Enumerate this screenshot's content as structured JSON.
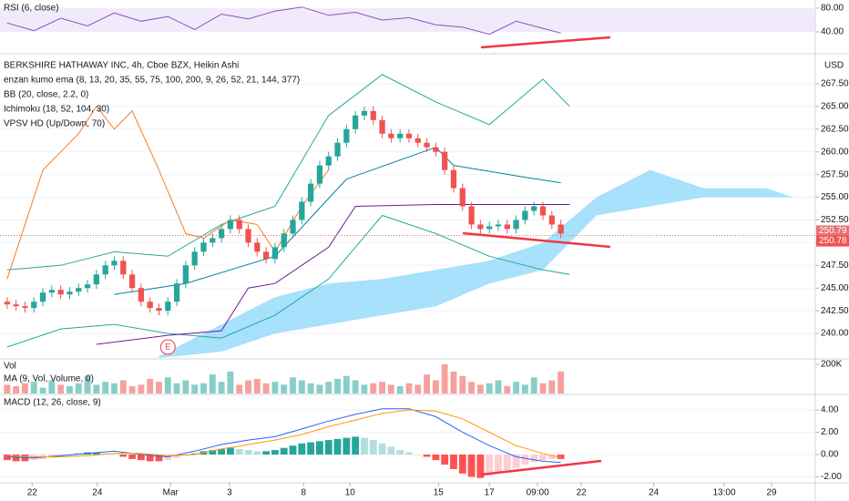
{
  "chart_data": [
    {
      "type": "rsi",
      "title": "RSI (6, close)",
      "color": "#7e57c2",
      "band_color": "#e9dcf7",
      "x": [
        0,
        3,
        6,
        9,
        12,
        15,
        18,
        21,
        24,
        27,
        30,
        33,
        36,
        39,
        42,
        45,
        48,
        51,
        54,
        57,
        60,
        62
      ],
      "values": [
        55,
        42,
        63,
        50,
        72,
        58,
        66,
        44,
        70,
        62,
        75,
        82,
        68,
        73,
        60,
        64,
        52,
        48,
        36,
        58,
        46,
        38
      ],
      "xlim": [
        -0.8,
        90.5
      ],
      "ylim": [
        7.7,
        93.8
      ],
      "yticks": [
        {
          "value": 80,
          "label": "80.00"
        },
        {
          "value": 40,
          "label": "40.00"
        }
      ]
    },
    {
      "type": "candlestick",
      "title": "BERKSHIRE HATHAWAY INC, 4h, Cboe BZX, Heikin Ashi",
      "indicators": [
        "enzan kumo ema (8, 13, 20, 35, 55, 75, 100, 200, 9, 26, 52, 21, 144, 377)",
        "BB (20, close, 2.2, 0)",
        "Ichimoku (18, 52, 104, 30)",
        "VPSV HD (Up/Down, 70)"
      ],
      "currency": "USD",
      "up_color": "#26a69a",
      "down_color": "#ef5350",
      "open": [
        243.5,
        243.2,
        243.0,
        242.8,
        243.5,
        244.5,
        244.8,
        244.3,
        244.6,
        245.0,
        245.4,
        246.5,
        247.5,
        248.0,
        246.5,
        245.0,
        243.5,
        242.8,
        242.5,
        243.5,
        245.5,
        247.5,
        249.0,
        250.0,
        250.5,
        251.5,
        252.5,
        251.5,
        250.0,
        249.0,
        248.2,
        249.5,
        251.0,
        252.5,
        254.5,
        256.5,
        258.5,
        259.5,
        261.0,
        262.5,
        264.0,
        264.5,
        263.5,
        262.0,
        261.5,
        262.0,
        261.5,
        261.0,
        260.5,
        260.0,
        258.0,
        256.0,
        254.0,
        252.0,
        251.5,
        251.8,
        252.0,
        251.5,
        252.5,
        253.5,
        254.0,
        253.0,
        252.0
      ],
      "high": [
        244.0,
        243.7,
        243.5,
        244.0,
        245.0,
        245.3,
        245.3,
        245.1,
        245.5,
        245.9,
        247.0,
        248.0,
        248.5,
        248.5,
        247.0,
        245.5,
        244.0,
        243.3,
        244.0,
        246.0,
        248.0,
        249.5,
        250.5,
        251.0,
        252.0,
        253.0,
        253.0,
        252.0,
        250.5,
        249.5,
        250.0,
        251.5,
        253.0,
        255.0,
        257.0,
        259.0,
        260.0,
        261.5,
        263.0,
        264.5,
        265.0,
        265.0,
        264.0,
        262.5,
        262.5,
        262.5,
        262.0,
        261.5,
        261.0,
        260.5,
        258.5,
        256.5,
        254.5,
        252.5,
        252.3,
        252.5,
        252.5,
        253.0,
        254.0,
        254.5,
        254.5,
        253.5,
        252.5
      ],
      "low": [
        242.7,
        242.5,
        242.3,
        242.3,
        243.0,
        244.0,
        243.8,
        243.8,
        244.1,
        244.5,
        244.9,
        246.0,
        247.0,
        246.0,
        244.5,
        243.0,
        242.3,
        242.0,
        242.0,
        243.0,
        245.0,
        247.0,
        248.5,
        249.5,
        250.0,
        251.0,
        251.0,
        249.5,
        248.5,
        247.7,
        247.7,
        249.0,
        250.5,
        252.0,
        254.0,
        256.0,
        258.0,
        259.0,
        260.5,
        262.0,
        263.5,
        263.0,
        261.5,
        261.0,
        261.0,
        261.0,
        260.5,
        260.0,
        259.5,
        257.5,
        255.5,
        253.5,
        251.5,
        251.0,
        251.0,
        251.3,
        251.0,
        251.0,
        252.0,
        253.0,
        252.5,
        251.5,
        250.5
      ],
      "close": [
        243.2,
        243.0,
        242.8,
        243.5,
        244.5,
        244.8,
        244.3,
        244.6,
        245.0,
        245.4,
        246.5,
        247.5,
        248.0,
        246.5,
        245.0,
        243.5,
        242.8,
        242.5,
        243.5,
        245.5,
        247.5,
        249.0,
        250.0,
        250.5,
        251.5,
        252.5,
        251.5,
        250.0,
        249.0,
        248.2,
        249.5,
        251.0,
        252.5,
        254.5,
        256.5,
        258.5,
        259.5,
        261.0,
        262.5,
        264.0,
        264.5,
        263.5,
        262.0,
        261.5,
        262.0,
        261.5,
        261.0,
        260.5,
        260.0,
        258.0,
        256.0,
        254.0,
        252.0,
        251.5,
        251.8,
        252.0,
        251.5,
        252.5,
        253.5,
        254.0,
        253.0,
        252.0,
        251.0
      ],
      "overlays": [
        {
          "color": "#26a69a",
          "x": [
            0,
            6,
            12,
            18,
            24,
            30,
            36,
            42,
            48,
            54,
            60,
            63
          ],
          "values": [
            247,
            247.5,
            249,
            248.5,
            252,
            254,
            264,
            268.5,
            265.5,
            263,
            268,
            265
          ]
        },
        {
          "color": "#26a69a",
          "x": [
            0,
            6,
            12,
            18,
            24,
            30,
            36,
            42,
            48,
            54,
            60,
            63
          ],
          "values": [
            238.5,
            240.5,
            241,
            240,
            239.5,
            242,
            246,
            253,
            251,
            248.5,
            247,
            246.5
          ]
        },
        {
          "color": "#f57c20",
          "x": [
            0,
            4,
            8,
            10,
            12,
            14,
            17,
            20,
            22,
            25,
            28,
            30,
            33,
            36
          ],
          "values": [
            246,
            258,
            262,
            265,
            262.5,
            264.5,
            258,
            251,
            250.5,
            252.5,
            252,
            249,
            254,
            258
          ]
        },
        {
          "color": "#6a1b9a",
          "x": [
            10,
            18,
            24,
            27,
            30,
            36,
            39,
            48,
            55,
            63
          ],
          "values": [
            238.8,
            239.8,
            240.3,
            245,
            245.5,
            249.5,
            254,
            254.2,
            254.2,
            254.2
          ]
        },
        {
          "color": "#00838f",
          "x": [
            12,
            20,
            30,
            38,
            48,
            50,
            58,
            62
          ],
          "values": [
            244.3,
            245.5,
            248.5,
            257,
            260.5,
            258.5,
            257.2,
            256.6
          ]
        }
      ],
      "cloud": {
        "color": "#81d4fa",
        "x": [
          17,
          24,
          30,
          36,
          42,
          48,
          54,
          60,
          66,
          72,
          78,
          85,
          88
        ],
        "span_a": [
          237.5,
          241,
          244,
          245.5,
          246,
          247,
          248,
          250,
          255,
          258,
          256,
          256,
          255
        ],
        "span_b": [
          237.3,
          238,
          240,
          241,
          242,
          243,
          245.5,
          247,
          253,
          254,
          255,
          255,
          255
        ]
      },
      "price_labels": [
        {
          "value": 250.79,
          "label": "250.79",
          "color": "#e57373"
        },
        {
          "value": 250.78,
          "label": "250.78",
          "color": "#ef5350"
        }
      ],
      "earnings_marker": "E",
      "earnings_x": 18,
      "xlim": [
        -0.8,
        90.5
      ],
      "ylim": [
        237.3,
        270.3
      ],
      "yticks": [
        {
          "value": 267.5,
          "label": "267.50"
        },
        {
          "value": 265,
          "label": "265.00"
        },
        {
          "value": 262.5,
          "label": "262.50"
        },
        {
          "value": 260,
          "label": "260.00"
        },
        {
          "value": 257.5,
          "label": "257.50"
        },
        {
          "value": 255,
          "label": "255.00"
        },
        {
          "value": 252.5,
          "label": "252.50"
        },
        {
          "value": 250,
          "label": "250.00"
        },
        {
          "value": 247.5,
          "label": "247.50"
        },
        {
          "value": 245,
          "label": "245.00"
        },
        {
          "value": 242.5,
          "label": "242.50"
        },
        {
          "value": 240,
          "label": "240.00"
        }
      ]
    },
    {
      "type": "volume",
      "title": "Vol",
      "subtitle": "MA (9, Vol, Volume, 0)",
      "values": [
        60000,
        50000,
        70000,
        80000,
        40000,
        90000,
        60000,
        50000,
        70000,
        120000,
        60000,
        80000,
        70000,
        90000,
        50000,
        60000,
        100000,
        80000,
        110000,
        70000,
        90000,
        60000,
        70000,
        130000,
        80000,
        150000,
        60000,
        90000,
        100000,
        70000,
        80000,
        60000,
        110000,
        90000,
        70000,
        60000,
        80000,
        100000,
        120000,
        90000,
        60000,
        70000,
        80000,
        60000,
        50000,
        70000,
        60000,
        130000,
        90000,
        200000,
        150000,
        120000,
        80000,
        60000,
        70000,
        90000,
        50000,
        80000,
        60000,
        110000,
        70000,
        90000,
        150000
      ],
      "xlim": [
        -0.8,
        90.5
      ],
      "ylim": [
        0,
        230000
      ],
      "yticks": [
        {
          "value": 200000,
          "label": "200K"
        }
      ]
    },
    {
      "type": "macd",
      "title": "MACD (12, 26, close, 9)",
      "histogram": [
        -0.5,
        -0.6,
        -0.6,
        -0.5,
        -0.4,
        -0.3,
        -0.2,
        -0.1,
        0.1,
        0.2,
        0.2,
        0.1,
        0.0,
        -0.2,
        -0.4,
        -0.5,
        -0.6,
        -0.6,
        -0.5,
        -0.3,
        -0.1,
        0.1,
        0.3,
        0.4,
        0.5,
        0.6,
        0.5,
        0.4,
        0.3,
        0.3,
        0.4,
        0.6,
        0.8,
        1.0,
        1.1,
        1.2,
        1.3,
        1.4,
        1.5,
        1.6,
        1.5,
        1.3,
        1.0,
        0.7,
        0.4,
        0.2,
        0.0,
        -0.2,
        -0.5,
        -0.9,
        -1.3,
        -1.7,
        -2.0,
        -2.1,
        -1.9,
        -1.7,
        -1.4,
        -1.2,
        -0.9,
        -0.7,
        -0.5,
        -0.4,
        -0.4
      ],
      "macd": {
        "color": "#2962ff",
        "x": [
          0,
          3,
          6,
          9,
          12,
          15,
          18,
          21,
          24,
          27,
          30,
          33,
          36,
          39,
          42,
          45,
          48,
          51,
          54,
          57,
          60,
          62
        ],
        "values": [
          -0.2,
          -0.3,
          -0.1,
          0.1,
          0.3,
          0.0,
          -0.2,
          0.3,
          0.9,
          1.3,
          1.6,
          2.3,
          3.0,
          3.6,
          4.1,
          4.1,
          3.4,
          2.0,
          0.8,
          -0.2,
          -0.6,
          -0.7
        ]
      },
      "signal": {
        "color": "#ff9800",
        "x": [
          0,
          3,
          6,
          9,
          12,
          15,
          18,
          21,
          24,
          27,
          30,
          33,
          36,
          39,
          42,
          45,
          48,
          51,
          54,
          57,
          60,
          62
        ],
        "values": [
          -0.1,
          -0.2,
          -0.2,
          -0.1,
          0.1,
          0.1,
          -0.1,
          0.0,
          0.5,
          0.9,
          1.3,
          1.8,
          2.5,
          3.1,
          3.7,
          4.0,
          3.9,
          3.2,
          2.0,
          0.8,
          0.1,
          -0.3
        ]
      },
      "xlim": [
        -0.8,
        90.5
      ],
      "ylim": [
        -2.53,
        5.31
      ],
      "yticks": [
        {
          "value": 4,
          "label": "4.00"
        },
        {
          "value": 2,
          "label": "2.00"
        },
        {
          "value": 0,
          "label": "0.00"
        },
        {
          "value": -2,
          "label": "-2.00"
        }
      ],
      "xticks": [
        {
          "value": 2.8,
          "label": "22"
        },
        {
          "value": 10.1,
          "label": "24"
        },
        {
          "value": 18.3,
          "label": "Mar"
        },
        {
          "value": 24.9,
          "label": "3"
        },
        {
          "value": 33.2,
          "label": "8"
        },
        {
          "value": 38.4,
          "label": "10"
        },
        {
          "value": 48.3,
          "label": "15"
        },
        {
          "value": 54,
          "label": "17"
        },
        {
          "value": 59.4,
          "label": "09:00"
        },
        {
          "value": 64.3,
          "label": "22"
        },
        {
          "value": 72.4,
          "label": "24"
        },
        {
          "value": 80.3,
          "label": "13:00"
        },
        {
          "value": 85.6,
          "label": "29"
        }
      ]
    }
  ]
}
